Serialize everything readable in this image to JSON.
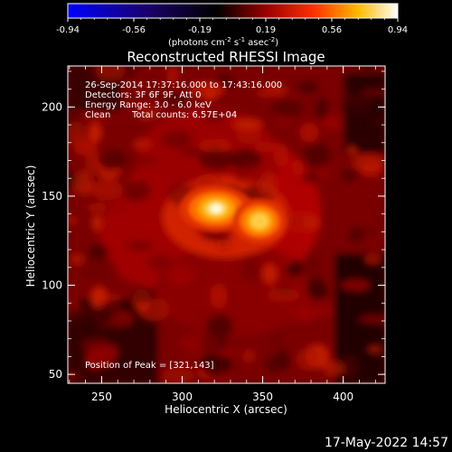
{
  "colorbar": {
    "min": -0.94,
    "max": 0.94,
    "tick_labels": [
      "-0.94",
      "-0.56",
      "-0.19",
      "0.19",
      "0.56",
      "0.94"
    ],
    "units_main": "(photons cm",
    "units_sup1": "-2",
    "units_mid": " s",
    "units_sup2": "-1",
    "units_end": " asec",
    "units_sup3": "-2",
    "units_close": ")",
    "colors": [
      "#0000ff",
      "#000000",
      "#ff0000",
      "#ffff00",
      "#ffffff"
    ]
  },
  "info": {
    "line1": "26-Sep-2014 17:37:16.000 to 17:43:16.000",
    "line2": "Detectors: 3F 6F 9F, Att 0",
    "line3": "Energy Range: 3.0 - 6.0 keV",
    "line4_a": "Clean",
    "line4_b": "Total counts: 6.57E+04"
  },
  "peak_text": "Position of Peak = [321,143]",
  "footer": "17-May-2022 14:57",
  "chart_data": {
    "type": "heatmap",
    "title": "Reconstructed RHESSI Image",
    "xlabel": "Heliocentric X (arcsec)",
    "ylabel": "Heliocentric Y (arcsec)",
    "xlim": [
      229,
      426
    ],
    "ylim": [
      45,
      223
    ],
    "xticks": [
      250,
      300,
      350,
      400
    ],
    "yticks": [
      50,
      100,
      150,
      200
    ],
    "sources": [
      {
        "x": 321,
        "y": 143,
        "peak": 1.0
      },
      {
        "x": 348,
        "y": 136,
        "peak": 0.7
      }
    ]
  }
}
